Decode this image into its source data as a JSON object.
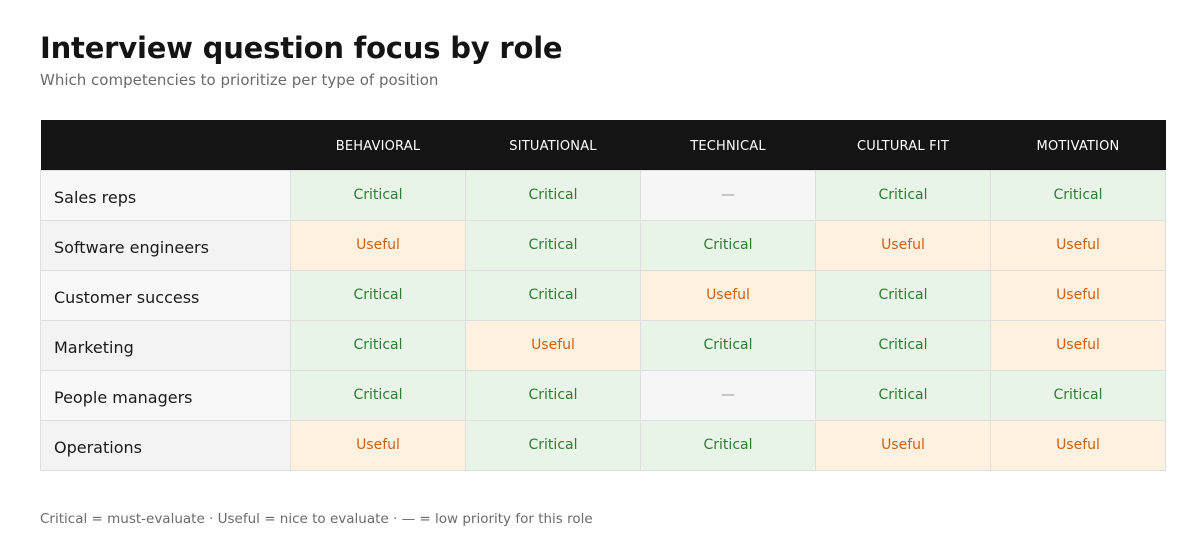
{
  "title": "Interview question focus by role",
  "subtitle": "Which competencies to prioritize per type of position",
  "footnote": "Critical = must-evaluate · Useful = nice to evaluate · — = low priority for this role",
  "colors": {
    "header_bg": "#141414",
    "critical_bg": "#e7f4e7",
    "critical_text": "#2e7d32",
    "useful_bg": "#fff1e0",
    "useful_text": "#d05f12",
    "low_bg": "#f6f6f6",
    "low_text": "#9a9a9a"
  },
  "chart_data": {
    "type": "table",
    "title": "Interview question focus by role",
    "columns": [
      "BEHAVIORAL",
      "SITUATIONAL",
      "TECHNICAL",
      "CULTURAL FIT",
      "MOTIVATION"
    ],
    "rows": [
      {
        "role": "Sales reps",
        "values": [
          "Critical",
          "Critical",
          "—",
          "Critical",
          "Critical"
        ]
      },
      {
        "role": "Software engineers",
        "values": [
          "Useful",
          "Critical",
          "Critical",
          "Useful",
          "Useful"
        ]
      },
      {
        "role": "Customer success",
        "values": [
          "Critical",
          "Critical",
          "Useful",
          "Critical",
          "Useful"
        ]
      },
      {
        "role": "Marketing",
        "values": [
          "Critical",
          "Useful",
          "Critical",
          "Critical",
          "Useful"
        ]
      },
      {
        "role": "People managers",
        "values": [
          "Critical",
          "Critical",
          "—",
          "Critical",
          "Critical"
        ]
      },
      {
        "role": "Operations",
        "values": [
          "Useful",
          "Critical",
          "Critical",
          "Useful",
          "Useful"
        ]
      }
    ]
  }
}
